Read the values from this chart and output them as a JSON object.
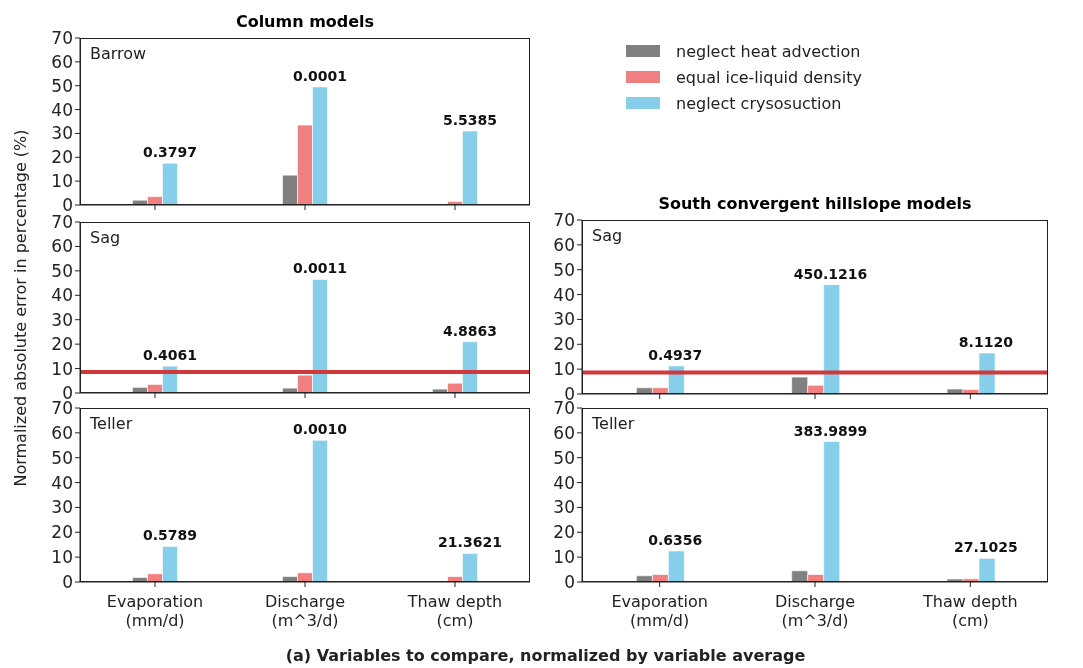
{
  "chart_data": [
    {
      "type": "bar",
      "title": "Column models",
      "categories": [
        null,
        null,
        null
      ],
      "ylim": [
        0,
        70
      ],
      "yticks": [
        0,
        10,
        20,
        30,
        40,
        50,
        60,
        70
      ],
      "tick_labels": "y",
      "legend": "right",
      "annotations": [
        "Barrow",
        {
          "text": "0.3797",
          "y": 17.5
        },
        {
          "text": "0.0001",
          "y": 49.5
        },
        {
          "text": "5.5385",
          "y": 31
        }
      ],
      "series": [
        {
          "name": "neglect heat advection",
          "color": "#808080",
          "values": [
            2,
            12.5,
            0.3
          ]
        },
        {
          "name": "equal ice-liquid density",
          "color": "#f08080",
          "values": [
            3.5,
            33.5,
            1.5
          ]
        },
        {
          "name": "neglect crysosuction",
          "color": "#87ceeb",
          "values": [
            17.5,
            49.5,
            31
          ]
        }
      ]
    },
    {
      "type": "bar",
      "categories": [
        null,
        null,
        null
      ],
      "ylim": [
        0,
        70
      ],
      "yticks": [
        0,
        10,
        20,
        30,
        40,
        50,
        60,
        70
      ],
      "tick_labels": "y",
      "ylabel": "Normalized absolute error in percentage (%)",
      "annotations": [
        "Sag",
        {
          "text": "0.4061",
          "y": 11
        },
        {
          "text": "0.0011",
          "y": 46.5
        },
        {
          "text": "4.8863",
          "y": 21
        }
      ],
      "ref_lines": [
        {
          "axis": "y",
          "value": 8.6,
          "color": "#d0393b"
        }
      ],
      "series": [
        {
          "color": "#808080",
          "values": [
            2.3,
            2,
            1.6
          ]
        },
        {
          "color": "#f08080",
          "values": [
            3.5,
            7.3,
            4
          ]
        },
        {
          "color": "#87ceeb",
          "values": [
            11,
            46.5,
            21
          ]
        }
      ]
    },
    {
      "type": "bar",
      "categories": [
        "Evaporation (mm/d)",
        "Discharge (m^3/d)",
        "Thaw depth (cm)"
      ],
      "ylim": [
        0,
        70
      ],
      "yticks": [
        0,
        10,
        20,
        30,
        40,
        50,
        60,
        70
      ],
      "xlabel": "(a) Variables to compare, normalized by variable average",
      "annotations": [
        "Teller",
        {
          "text": "0.5789",
          "y": 14.3
        },
        {
          "text": "0.0010",
          "y": 57
        },
        {
          "text": "21.3621",
          "y": 11.5
        }
      ],
      "series": [
        {
          "color": "#808080",
          "values": [
            1.8,
            2.2,
            0.3
          ]
        },
        {
          "color": "#f08080",
          "values": [
            3.3,
            3.7,
            2.2
          ]
        },
        {
          "color": "#87ceeb",
          "values": [
            14.3,
            57,
            11.5
          ]
        }
      ]
    },
    {
      "type": "bar",
      "title": "South convergent hillslope models",
      "categories": [
        null,
        null,
        null
      ],
      "ylim": [
        0,
        70
      ],
      "yticks": [
        0,
        10,
        20,
        30,
        40,
        50,
        60,
        70
      ],
      "tick_labels": "y",
      "annotations": [
        "Sag",
        {
          "text": "0.4937",
          "y": 11.3
        },
        {
          "text": "450.1216",
          "y": 44
        },
        {
          "text": "8.1120",
          "y": 16.5
        }
      ],
      "ref_lines": [
        {
          "axis": "y",
          "value": 8.6,
          "color": "#d0393b"
        }
      ],
      "series": [
        {
          "color": "#808080",
          "values": [
            2.5,
            6.8,
            2
          ]
        },
        {
          "color": "#f08080",
          "values": [
            2.5,
            3.5,
            1.8
          ]
        },
        {
          "color": "#87ceeb",
          "values": [
            11.3,
            44,
            16.5
          ]
        }
      ]
    },
    {
      "type": "bar",
      "categories": [
        "Evaporation (mm/d)",
        "Discharge (m^3/d)",
        "Thaw depth (cm)"
      ],
      "ylim": [
        0,
        70
      ],
      "yticks": [
        0,
        10,
        20,
        30,
        40,
        50,
        60,
        70
      ],
      "annotations": [
        "Teller",
        {
          "text": "0.6356",
          "y": 12.5
        },
        {
          "text": "383.9899",
          "y": 56.5
        },
        {
          "text": "27.1025",
          "y": 9.5
        }
      ],
      "series": [
        {
          "color": "#808080",
          "values": [
            2.5,
            4.5,
            1.2
          ]
        },
        {
          "color": "#f08080",
          "values": [
            3,
            3,
            1.3
          ]
        },
        {
          "color": "#87ceeb",
          "values": [
            12.5,
            56.5,
            9.5
          ]
        }
      ]
    }
  ]
}
